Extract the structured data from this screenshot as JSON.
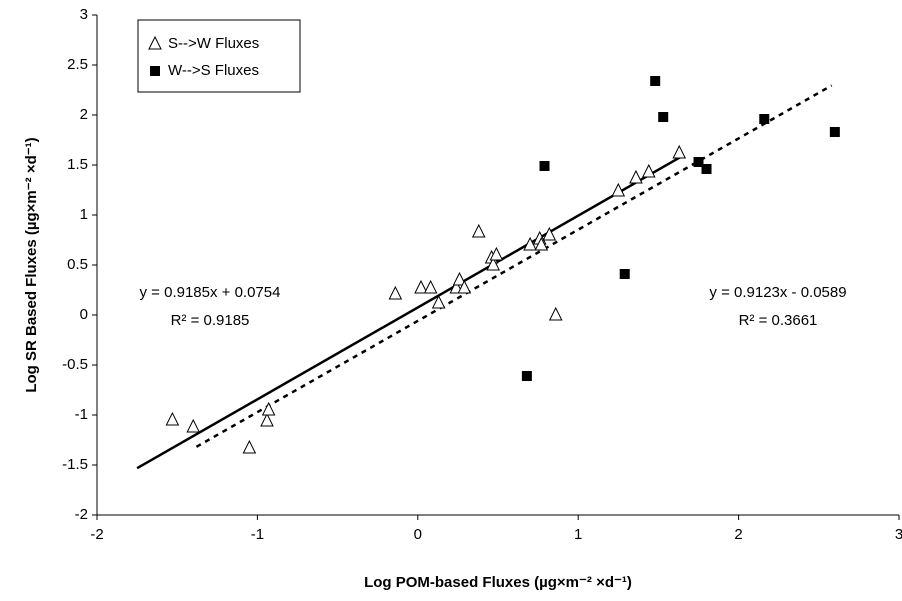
{
  "chart_data": {
    "type": "scatter",
    "x_label": "Log POM-based Fluxes (µg×m⁻² ×d⁻¹)",
    "y_label": "Log SR Based Fluxes (µg×m⁻² ×d⁻¹)",
    "xlim": [
      -2,
      3
    ],
    "ylim": [
      -2,
      3
    ],
    "xticks": [
      -2,
      -1,
      0,
      1,
      2,
      3
    ],
    "yticks": [
      -2,
      -1.5,
      -1,
      -0.5,
      0,
      0.5,
      1,
      1.5,
      2,
      2.5,
      3
    ],
    "grid": false,
    "legend": "top-left",
    "series": [
      {
        "name": "S-->W Fluxes",
        "marker": "triangle",
        "color": "#000000",
        "x": [
          -1.53,
          -1.4,
          -1.05,
          -0.94,
          -0.93,
          -0.14,
          0.02,
          0.08,
          0.13,
          0.24,
          0.26,
          0.29,
          0.38,
          0.46,
          0.47,
          0.49,
          0.7,
          0.76,
          0.77,
          0.82,
          0.86,
          1.25,
          1.36,
          1.44,
          1.63
        ],
        "values": [
          -1.05,
          -1.12,
          -1.33,
          -1.06,
          -0.95,
          0.21,
          0.27,
          0.27,
          0.12,
          0.27,
          0.35,
          0.27,
          0.83,
          0.57,
          0.5,
          0.6,
          0.7,
          0.76,
          0.7,
          0.8,
          0.0,
          1.24,
          1.37,
          1.43,
          1.62
        ]
      },
      {
        "name": "W-->S Fluxes",
        "marker": "square",
        "color": "#000000",
        "x": [
          0.68,
          0.79,
          1.29,
          1.48,
          1.53,
          1.75,
          1.8,
          2.16,
          2.6
        ],
        "values": [
          -0.61,
          1.49,
          0.41,
          2.34,
          1.98,
          1.53,
          1.46,
          1.96,
          1.83
        ]
      }
    ],
    "trendlines": [
      {
        "style": "solid",
        "equation": "y = 0.9185x + 0.0754",
        "r2": "R² = 0.9185",
        "x": [
          -1.75,
          1.65
        ],
        "values": [
          -1.532,
          1.591
        ]
      },
      {
        "style": "dotted",
        "equation": "y = 0.9123x - 0.0589",
        "r2": "R² = 0.3661",
        "x": [
          -1.38,
          2.58
        ],
        "values": [
          -1.318,
          2.295
        ]
      }
    ]
  }
}
